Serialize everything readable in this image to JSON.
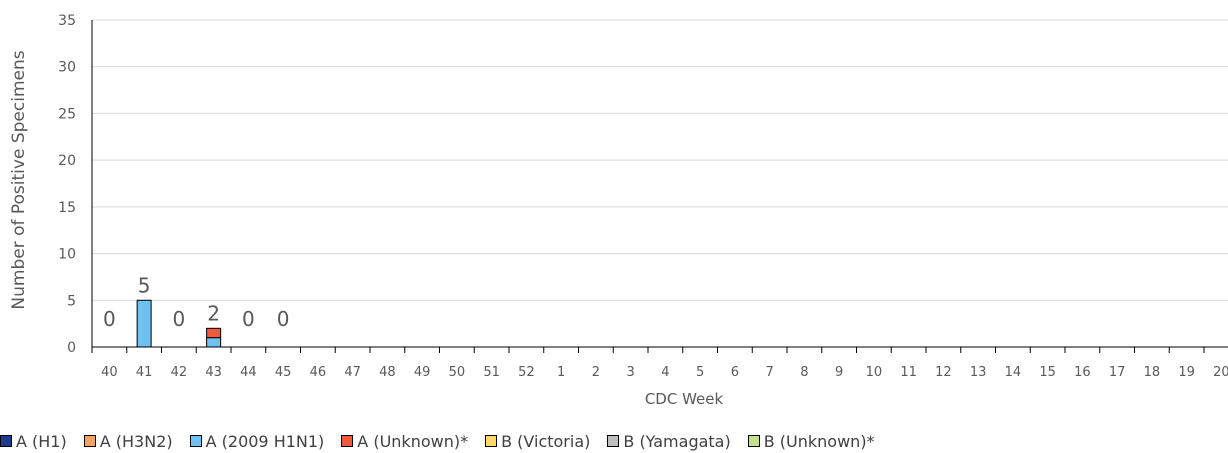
{
  "chart_data": {
    "type": "bar",
    "stacked": true,
    "xlabel": "CDC Week",
    "ylabel": "Number of Positive Specimens",
    "ylim": [
      0,
      35
    ],
    "yticks": [
      0,
      5,
      10,
      15,
      20,
      25,
      30,
      35
    ],
    "grid": true,
    "legend_position": "bottom",
    "categories": [
      "40",
      "41",
      "42",
      "43",
      "44",
      "45",
      "46",
      "47",
      "48",
      "49",
      "50",
      "51",
      "52",
      "1",
      "2",
      "3",
      "4",
      "5",
      "6",
      "7",
      "8",
      "9",
      "10",
      "11",
      "12",
      "13",
      "14",
      "15",
      "16",
      "17",
      "18",
      "19",
      "20"
    ],
    "series": [
      {
        "name": "A (H1)",
        "color": "#1f3a93",
        "values": [
          0,
          0,
          0,
          0,
          0,
          0,
          null,
          null,
          null,
          null,
          null,
          null,
          null,
          null,
          null,
          null,
          null,
          null,
          null,
          null,
          null,
          null,
          null,
          null,
          null,
          null,
          null,
          null,
          null,
          null,
          null,
          null,
          null
        ]
      },
      {
        "name": "A (H3N2)",
        "color": "#f4a460",
        "values": [
          0,
          0,
          0,
          0,
          0,
          0,
          null,
          null,
          null,
          null,
          null,
          null,
          null,
          null,
          null,
          null,
          null,
          null,
          null,
          null,
          null,
          null,
          null,
          null,
          null,
          null,
          null,
          null,
          null,
          null,
          null,
          null,
          null
        ]
      },
      {
        "name": "A (2009 H1N1)",
        "color": "#6ec1f0",
        "values": [
          0,
          5,
          0,
          1,
          0,
          0,
          null,
          null,
          null,
          null,
          null,
          null,
          null,
          null,
          null,
          null,
          null,
          null,
          null,
          null,
          null,
          null,
          null,
          null,
          null,
          null,
          null,
          null,
          null,
          null,
          null,
          null,
          null
        ]
      },
      {
        "name": "A (Unknown)*",
        "color": "#f05a3c",
        "values": [
          0,
          0,
          0,
          1,
          0,
          0,
          null,
          null,
          null,
          null,
          null,
          null,
          null,
          null,
          null,
          null,
          null,
          null,
          null,
          null,
          null,
          null,
          null,
          null,
          null,
          null,
          null,
          null,
          null,
          null,
          null,
          null,
          null
        ]
      },
      {
        "name": "B (Victoria)",
        "color": "#ffd966",
        "values": [
          0,
          0,
          0,
          0,
          0,
          0,
          null,
          null,
          null,
          null,
          null,
          null,
          null,
          null,
          null,
          null,
          null,
          null,
          null,
          null,
          null,
          null,
          null,
          null,
          null,
          null,
          null,
          null,
          null,
          null,
          null,
          null,
          null
        ]
      },
      {
        "name": "B (Yamagata)",
        "color": "#bfbfbf",
        "values": [
          0,
          0,
          0,
          0,
          0,
          0,
          null,
          null,
          null,
          null,
          null,
          null,
          null,
          null,
          null,
          null,
          null,
          null,
          null,
          null,
          null,
          null,
          null,
          null,
          null,
          null,
          null,
          null,
          null,
          null,
          null,
          null,
          null
        ]
      },
      {
        "name": "B (Unknown)*",
        "color": "#c5e08a",
        "values": [
          0,
          0,
          0,
          0,
          0,
          0,
          null,
          null,
          null,
          null,
          null,
          null,
          null,
          null,
          null,
          null,
          null,
          null,
          null,
          null,
          null,
          null,
          null,
          null,
          null,
          null,
          null,
          null,
          null,
          null,
          null,
          null,
          null
        ]
      }
    ],
    "total_labels": [
      "0",
      "5",
      "0",
      "2",
      "0",
      "0"
    ]
  }
}
